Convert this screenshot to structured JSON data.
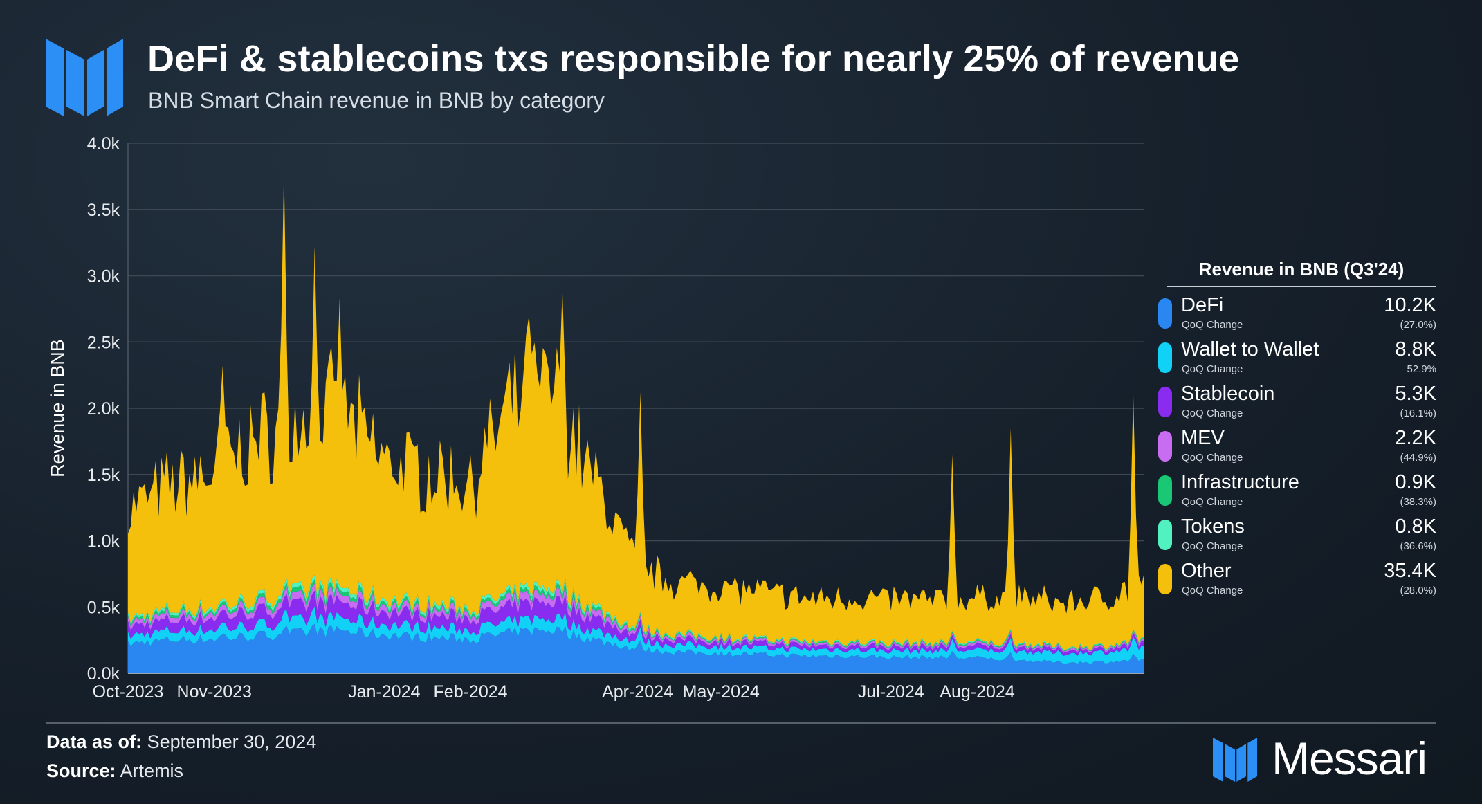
{
  "header": {
    "title": "DeFi & stablecoins txs responsible for nearly 25% of revenue",
    "subtitle": "BNB Smart Chain revenue in BNB by category"
  },
  "legend": {
    "title": "Revenue in BNB (Q3'24)",
    "sub_label": "QoQ Change",
    "items": [
      {
        "name": "DeFi",
        "value": "10.2K",
        "change": "(27.0%)",
        "color": "#2a86f0"
      },
      {
        "name": "Wallet to Wallet",
        "value": "8.8K",
        "change": "52.9%",
        "color": "#12d1f7"
      },
      {
        "name": "Stablecoin",
        "value": "5.3K",
        "change": "(16.1%)",
        "color": "#8a2bf0"
      },
      {
        "name": "MEV",
        "value": "2.2K",
        "change": "(44.9%)",
        "color": "#c86cf2"
      },
      {
        "name": "Infrastructure",
        "value": "0.9K",
        "change": "(38.3%)",
        "color": "#19c775"
      },
      {
        "name": "Tokens",
        "value": "0.8K",
        "change": "(36.6%)",
        "color": "#52f2c0"
      },
      {
        "name": "Other",
        "value": "35.4K",
        "change": "(28.0%)",
        "color": "#f5c00c"
      }
    ]
  },
  "footer": {
    "data_as_of_label": "Data as of:",
    "data_as_of_value": "September 30, 2024",
    "source_label": "Source:",
    "source_value": "Artemis"
  },
  "brand": {
    "name": "Messari"
  },
  "chart_data": {
    "type": "area",
    "stacked": true,
    "ylabel": "Revenue in BNB",
    "ylim": [
      0,
      4000
    ],
    "y_ticks": [
      0,
      500,
      1000,
      1500,
      2000,
      2500,
      3000,
      3500,
      4000
    ],
    "y_tick_labels": [
      "0.0k",
      "0.5k",
      "1.0k",
      "1.5k",
      "2.0k",
      "2.5k",
      "3.0k",
      "3.5k",
      "4.0k"
    ],
    "x_start": "2023-10-01",
    "x_end": "2024-09-30",
    "x_tick_dates": [
      "2023-10-01",
      "2023-11-01",
      "2024-01-01",
      "2024-02-01",
      "2024-04-01",
      "2024-05-01",
      "2024-07-01",
      "2024-08-01"
    ],
    "x_tick_labels": [
      "Oct-2023",
      "Nov-2023",
      "Jan-2024",
      "Feb-2024",
      "Apr-2024",
      "May-2024",
      "Jul-2024",
      "Aug-2024"
    ],
    "grid": "horizontal",
    "legend_position": "right",
    "anchor_dates": [
      "2023-10-01",
      "2023-10-15",
      "2023-11-01",
      "2023-11-15",
      "2023-12-01",
      "2023-12-15",
      "2024-01-01",
      "2024-01-15",
      "2024-02-01",
      "2024-02-15",
      "2024-03-01",
      "2024-03-15",
      "2024-04-01",
      "2024-04-15",
      "2024-05-01",
      "2024-05-15",
      "2024-06-01",
      "2024-06-15",
      "2024-07-01",
      "2024-07-15",
      "2024-08-01",
      "2024-08-15",
      "2024-09-01",
      "2024-09-15",
      "2024-09-30"
    ],
    "series": [
      {
        "name": "DeFi",
        "color": "#2a86f0",
        "values": [
          220,
          250,
          260,
          280,
          300,
          320,
          290,
          270,
          260,
          300,
          330,
          260,
          180,
          160,
          150,
          140,
          130,
          130,
          120,
          120,
          115,
          100,
          80,
          85,
          95
        ]
      },
      {
        "name": "Wallet to Wallet",
        "color": "#12d1f7",
        "values": [
          60,
          70,
          70,
          80,
          90,
          90,
          80,
          80,
          70,
          80,
          90,
          70,
          60,
          55,
          55,
          50,
          50,
          50,
          50,
          50,
          60,
          70,
          70,
          75,
          90
        ]
      },
      {
        "name": "Stablecoin",
        "color": "#8a2bf0",
        "values": [
          70,
          80,
          90,
          100,
          110,
          120,
          100,
          90,
          90,
          110,
          130,
          100,
          50,
          40,
          35,
          35,
          30,
          30,
          30,
          30,
          30,
          30,
          25,
          25,
          30
        ]
      },
      {
        "name": "MEV",
        "color": "#c86cf2",
        "values": [
          30,
          40,
          40,
          45,
          50,
          55,
          45,
          40,
          40,
          50,
          60,
          45,
          25,
          20,
          18,
          16,
          15,
          15,
          15,
          15,
          15,
          15,
          12,
          12,
          15
        ]
      },
      {
        "name": "Infrastructure",
        "color": "#19c775",
        "values": [
          15,
          20,
          20,
          25,
          30,
          30,
          25,
          22,
          20,
          25,
          30,
          22,
          12,
          10,
          10,
          8,
          8,
          8,
          8,
          8,
          8,
          8,
          6,
          6,
          7
        ]
      },
      {
        "name": "Tokens",
        "color": "#52f2c0",
        "values": [
          15,
          20,
          20,
          25,
          30,
          30,
          25,
          22,
          20,
          25,
          30,
          22,
          12,
          10,
          10,
          8,
          8,
          8,
          8,
          8,
          8,
          8,
          6,
          6,
          7
        ]
      },
      {
        "name": "Other",
        "color": "#f5c00c",
        "values": [
          820,
          930,
          1020,
          1200,
          1280,
          1380,
          1050,
          1000,
          950,
          1400,
          1500,
          1000,
          480,
          390,
          380,
          360,
          320,
          330,
          330,
          320,
          330,
          350,
          330,
          360,
          430
        ]
      }
    ],
    "spikes": [
      {
        "date": "2023-11-26",
        "total": 3800
      },
      {
        "date": "2023-12-07",
        "total": 3220
      },
      {
        "date": "2023-12-16",
        "total": 2830
      },
      {
        "date": "2023-11-04",
        "total": 2320
      },
      {
        "date": "2024-03-05",
        "total": 2900
      },
      {
        "date": "2024-02-22",
        "total": 2700
      },
      {
        "date": "2024-04-02",
        "total": 2120
      },
      {
        "date": "2024-08-13",
        "total": 1850
      },
      {
        "date": "2024-07-23",
        "total": 1650
      },
      {
        "date": "2024-09-26",
        "total": 2120
      }
    ]
  }
}
